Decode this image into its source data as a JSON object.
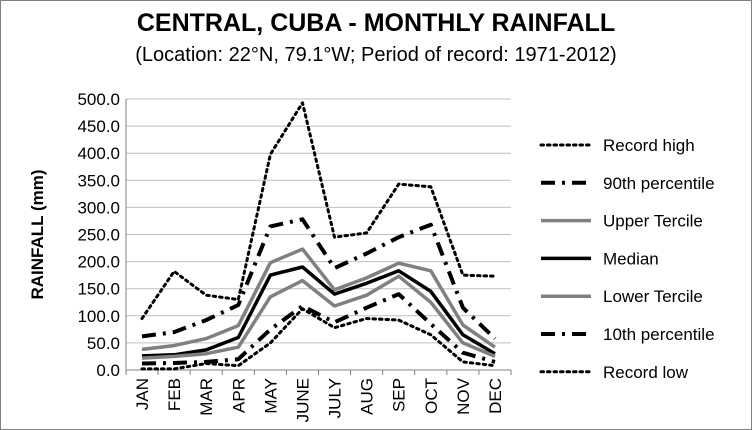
{
  "chart_data": {
    "type": "line",
    "title": "CENTRAL, CUBA - MONTHLY RAINFALL",
    "subtitle": "(Location: 22°N, 79.1°W; Period of record: 1971-2012)",
    "xlabel": "",
    "ylabel": "RAINFALL (mm)",
    "categories": [
      "JAN",
      "FEB",
      "MAR",
      "APR",
      "MAY",
      "JUNE",
      "JULY",
      "AUG",
      "SEP",
      "OCT",
      "NOV",
      "DEC"
    ],
    "ylim": [
      0,
      500
    ],
    "yticks": [
      "0.0",
      "50.0",
      "100.0",
      "150.0",
      "200.0",
      "250.0",
      "300.0",
      "350.0",
      "400.0",
      "450.0",
      "500.0"
    ],
    "grid": true,
    "legend_position": "right",
    "series": [
      {
        "name": "Record high",
        "style": "dotted",
        "color": "#000000",
        "values": [
          95,
          182,
          138,
          130,
          398,
          493,
          245,
          253,
          343,
          338,
          175,
          173
        ]
      },
      {
        "name": "90th percentile",
        "style": "dashdot",
        "color": "#000000",
        "values": [
          62,
          70,
          92,
          120,
          265,
          278,
          188,
          215,
          245,
          268,
          115,
          58
        ]
      },
      {
        "name": "Upper Tercile",
        "style": "solid",
        "color": "#808080",
        "values": [
          38,
          45,
          58,
          82,
          198,
          223,
          148,
          170,
          197,
          183,
          83,
          42
        ]
      },
      {
        "name": "Median",
        "style": "solid",
        "color": "#000000",
        "values": [
          26,
          28,
          37,
          60,
          175,
          190,
          140,
          160,
          183,
          145,
          65,
          30
        ]
      },
      {
        "name": "Lower Tercile",
        "style": "solid",
        "color": "#808080",
        "values": [
          22,
          25,
          30,
          42,
          135,
          165,
          118,
          138,
          173,
          125,
          50,
          25
        ]
      },
      {
        "name": "10th percentile",
        "style": "dashdot",
        "color": "#000000",
        "values": [
          12,
          13,
          15,
          20,
          75,
          118,
          88,
          115,
          140,
          85,
          32,
          15
        ]
      },
      {
        "name": "Record low",
        "style": "dotted",
        "color": "#000000",
        "values": [
          2,
          2,
          12,
          8,
          50,
          113,
          78,
          95,
          92,
          65,
          15,
          8
        ]
      }
    ]
  }
}
